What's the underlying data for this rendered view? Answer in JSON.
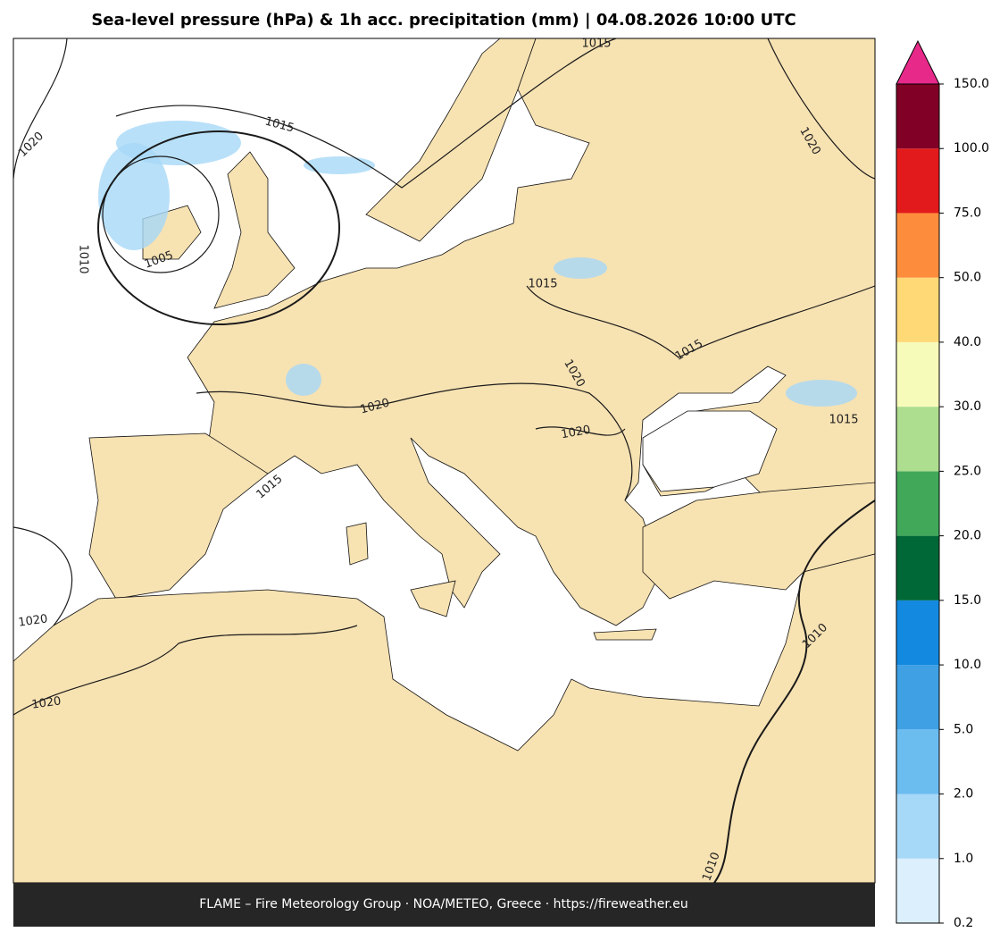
{
  "title": "Sea-level pressure (hPa) & 1h acc. precipitation (mm)  |  04.08.2026 10:00 UTC",
  "footer": "FLAME – Fire Meteorology Group · NOA/METEO, Greece · https://fireweather.eu",
  "colorbar": {
    "levels": [
      0.2,
      {
        "value": 1,
        "label": "1.0"
      },
      {
        "value": 2,
        "label": "2.0"
      },
      {
        "value": 5,
        "label": "5.0"
      },
      {
        "value": 10,
        "label": "10.0"
      },
      {
        "value": 15,
        "label": "15.0"
      },
      {
        "value": 20,
        "label": "20.0"
      },
      {
        "value": 25,
        "label": "25.0"
      },
      {
        "value": 30,
        "label": "30.0"
      },
      {
        "value": 40,
        "label": "40.0"
      },
      {
        "value": 50,
        "label": "50.0"
      },
      {
        "value": 75,
        "label": "75.0"
      },
      {
        "value": 100,
        "label": "100.0"
      },
      {
        "value": 150,
        "label": "150.0"
      }
    ],
    "colors": [
      "#dbeffd",
      "#a6d8f7",
      "#6bbcef",
      "#3fa0e4",
      "#1389df",
      "#006837",
      "#41a85a",
      "#addd8e",
      "#f7fbb9",
      "#fed976",
      "#fd8d3c",
      "#e31a1c",
      "#800026"
    ],
    "extend_color": "#e7298a"
  },
  "contour_labels": [
    "1015",
    "1015",
    "1020",
    "1020",
    "1010",
    "1005",
    "1015",
    "1015",
    "1020",
    "1020",
    "1015",
    "1020",
    "1015",
    "1020",
    "1020",
    "1010",
    "1010"
  ]
}
